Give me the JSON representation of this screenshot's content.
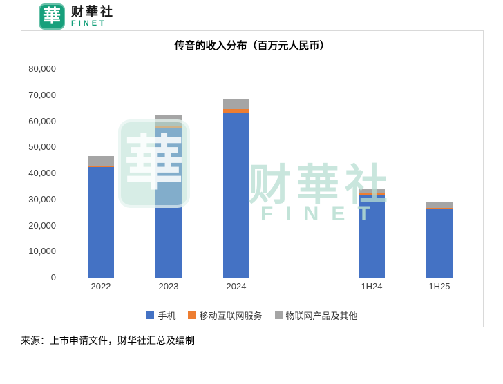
{
  "logo": {
    "seal_char": "華",
    "brand": "财華社",
    "brand_sub": "FINET"
  },
  "watermark": {
    "seal_char": "華",
    "text": "财華社",
    "sub": "FINET"
  },
  "chart_data": {
    "type": "bar",
    "stacked": true,
    "title": "传音的收入分布（百万元人民币）",
    "categories": [
      "2022",
      "2023",
      "2024",
      "1H24",
      "1H25"
    ],
    "series": [
      {
        "name": "手机",
        "key": "mobile-phones",
        "color": "#4472C4",
        "values": [
          42300,
          57300,
          63200,
          31700,
          26100
        ]
      },
      {
        "name": "移动互联网服务",
        "key": "mobile-internet-services",
        "color": "#ED7D31",
        "values": [
          600,
          1100,
          1500,
          700,
          600
        ]
      },
      {
        "name": "物联网产品及其他",
        "key": "iot-products-and-others",
        "color": "#A5A5A5",
        "values": [
          3700,
          3900,
          4000,
          1700,
          2300
        ]
      }
    ],
    "xlabel": "",
    "ylabel": "",
    "ylim": [
      0,
      80000
    ],
    "ytick_step": 10000,
    "ytick_labels": [
      "80,000",
      "70,000",
      "60,000",
      "50,000",
      "40,000",
      "30,000",
      "20,000",
      "10,000",
      "0"
    ],
    "grid": false,
    "legend_position": "bottom",
    "x_gap_after_index": 2
  },
  "source_note": "来源：上市申请文件，财华社汇总及编制"
}
